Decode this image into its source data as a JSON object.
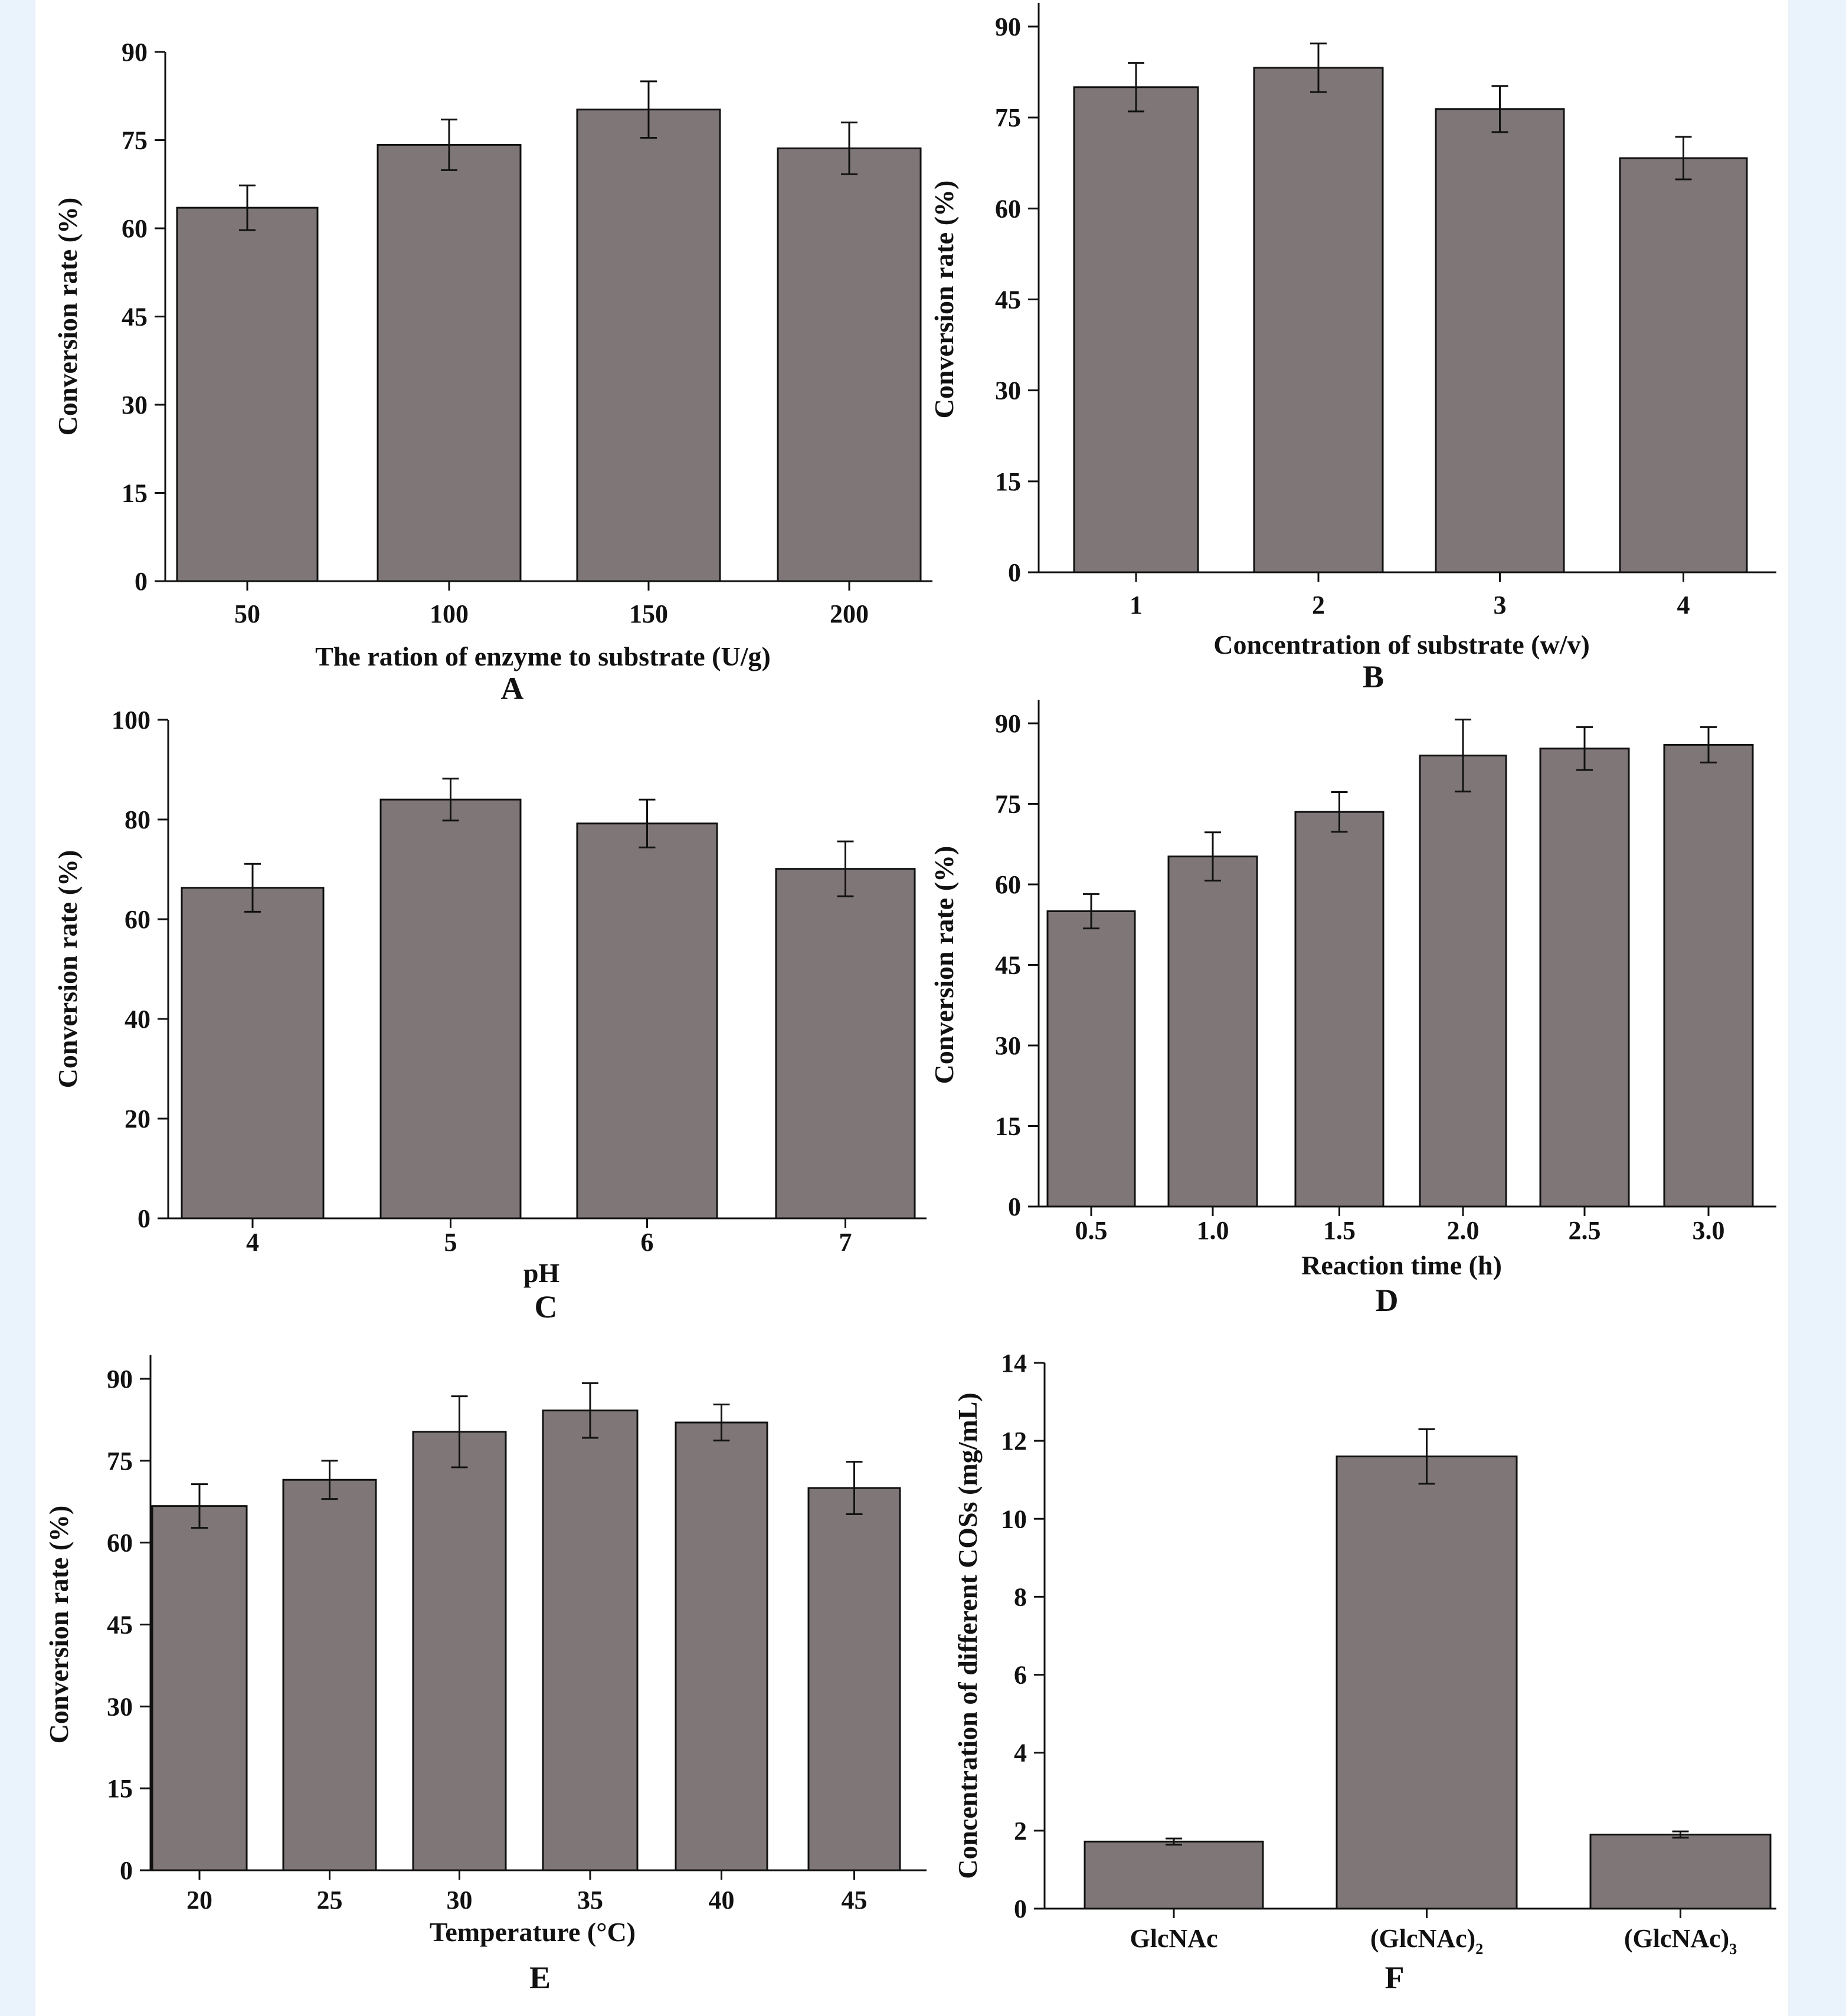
{
  "style": {
    "bar_color": "#7f7777",
    "background": "#eaf3fb"
  },
  "chart_data": [
    {
      "panel": "A",
      "type": "bar",
      "xlabel": "The ration of enzyme to substrate (U/g)",
      "ylabel": "Conversion rate (%)",
      "categories": [
        "50",
        "100",
        "150",
        "200"
      ],
      "values": [
        63.5,
        74.2,
        80.2,
        73.6
      ],
      "errors": [
        3.8,
        4.3,
        4.8,
        4.4
      ],
      "ylim": [
        0,
        90
      ],
      "yticks": [
        0,
        15,
        30,
        45,
        60,
        75,
        90
      ],
      "grid": false
    },
    {
      "panel": "B",
      "type": "bar",
      "xlabel": "Concentration of substrate (w/v)",
      "ylabel": "Conversion rate (%)",
      "categories": [
        "1",
        "2",
        "3",
        "4"
      ],
      "values": [
        80.0,
        83.2,
        76.4,
        68.3
      ],
      "errors": [
        4.0,
        4.0,
        3.8,
        3.5
      ],
      "ylim": [
        0,
        90
      ],
      "yticks": [
        0,
        15,
        30,
        45,
        60,
        75,
        90
      ],
      "grid": false
    },
    {
      "panel": "C",
      "type": "bar",
      "xlabel": "pH",
      "ylabel": "Conversion rate (%)",
      "categories": [
        "4",
        "5",
        "6",
        "7"
      ],
      "values": [
        66.3,
        84.0,
        79.2,
        70.1
      ],
      "errors": [
        4.8,
        4.2,
        4.8,
        5.5
      ],
      "ylim": [
        0,
        100
      ],
      "yticks": [
        0,
        20,
        40,
        60,
        80,
        100
      ],
      "grid": false
    },
    {
      "panel": "D",
      "type": "bar",
      "xlabel": "Reaction time (h)",
      "ylabel": "Conversion rate (%)",
      "categories": [
        "0.5",
        "1.0",
        "1.5",
        "2.0",
        "2.5",
        "3.0"
      ],
      "values": [
        55.0,
        65.2,
        73.5,
        84.0,
        85.3,
        86.0
      ],
      "errors": [
        3.2,
        4.5,
        3.7,
        6.7,
        4.0,
        3.3
      ],
      "ylim": [
        0,
        90
      ],
      "yticks": [
        0,
        15,
        30,
        45,
        60,
        75,
        90
      ],
      "grid": false
    },
    {
      "panel": "E",
      "type": "bar",
      "xlabel": "Temperature (°C)",
      "ylabel": "Conversion rate (%)",
      "categories": [
        "20",
        "25",
        "30",
        "35",
        "40",
        "45"
      ],
      "values": [
        66.7,
        71.5,
        80.3,
        84.2,
        82.0,
        70.0
      ],
      "errors": [
        4.0,
        3.5,
        6.5,
        5.0,
        3.3,
        4.8
      ],
      "ylim": [
        0,
        90
      ],
      "yticks": [
        0,
        15,
        30,
        45,
        60,
        75,
        90
      ],
      "grid": false
    },
    {
      "panel": "F",
      "type": "bar",
      "xlabel": "",
      "ylabel": "Concentration of different COSs (mg/mL)",
      "categories": [
        {
          "base": "GlcNAc",
          "sub": ""
        },
        {
          "base": "(GlcNAc)",
          "sub": "2"
        },
        {
          "base": "(GlcNAc)",
          "sub": "3"
        }
      ],
      "values": [
        1.72,
        11.6,
        1.9
      ],
      "errors": [
        0.08,
        0.7,
        0.08
      ],
      "ylim": [
        0,
        14
      ],
      "yticks": [
        0,
        2,
        4,
        6,
        8,
        10,
        12,
        14
      ],
      "grid": false
    }
  ]
}
